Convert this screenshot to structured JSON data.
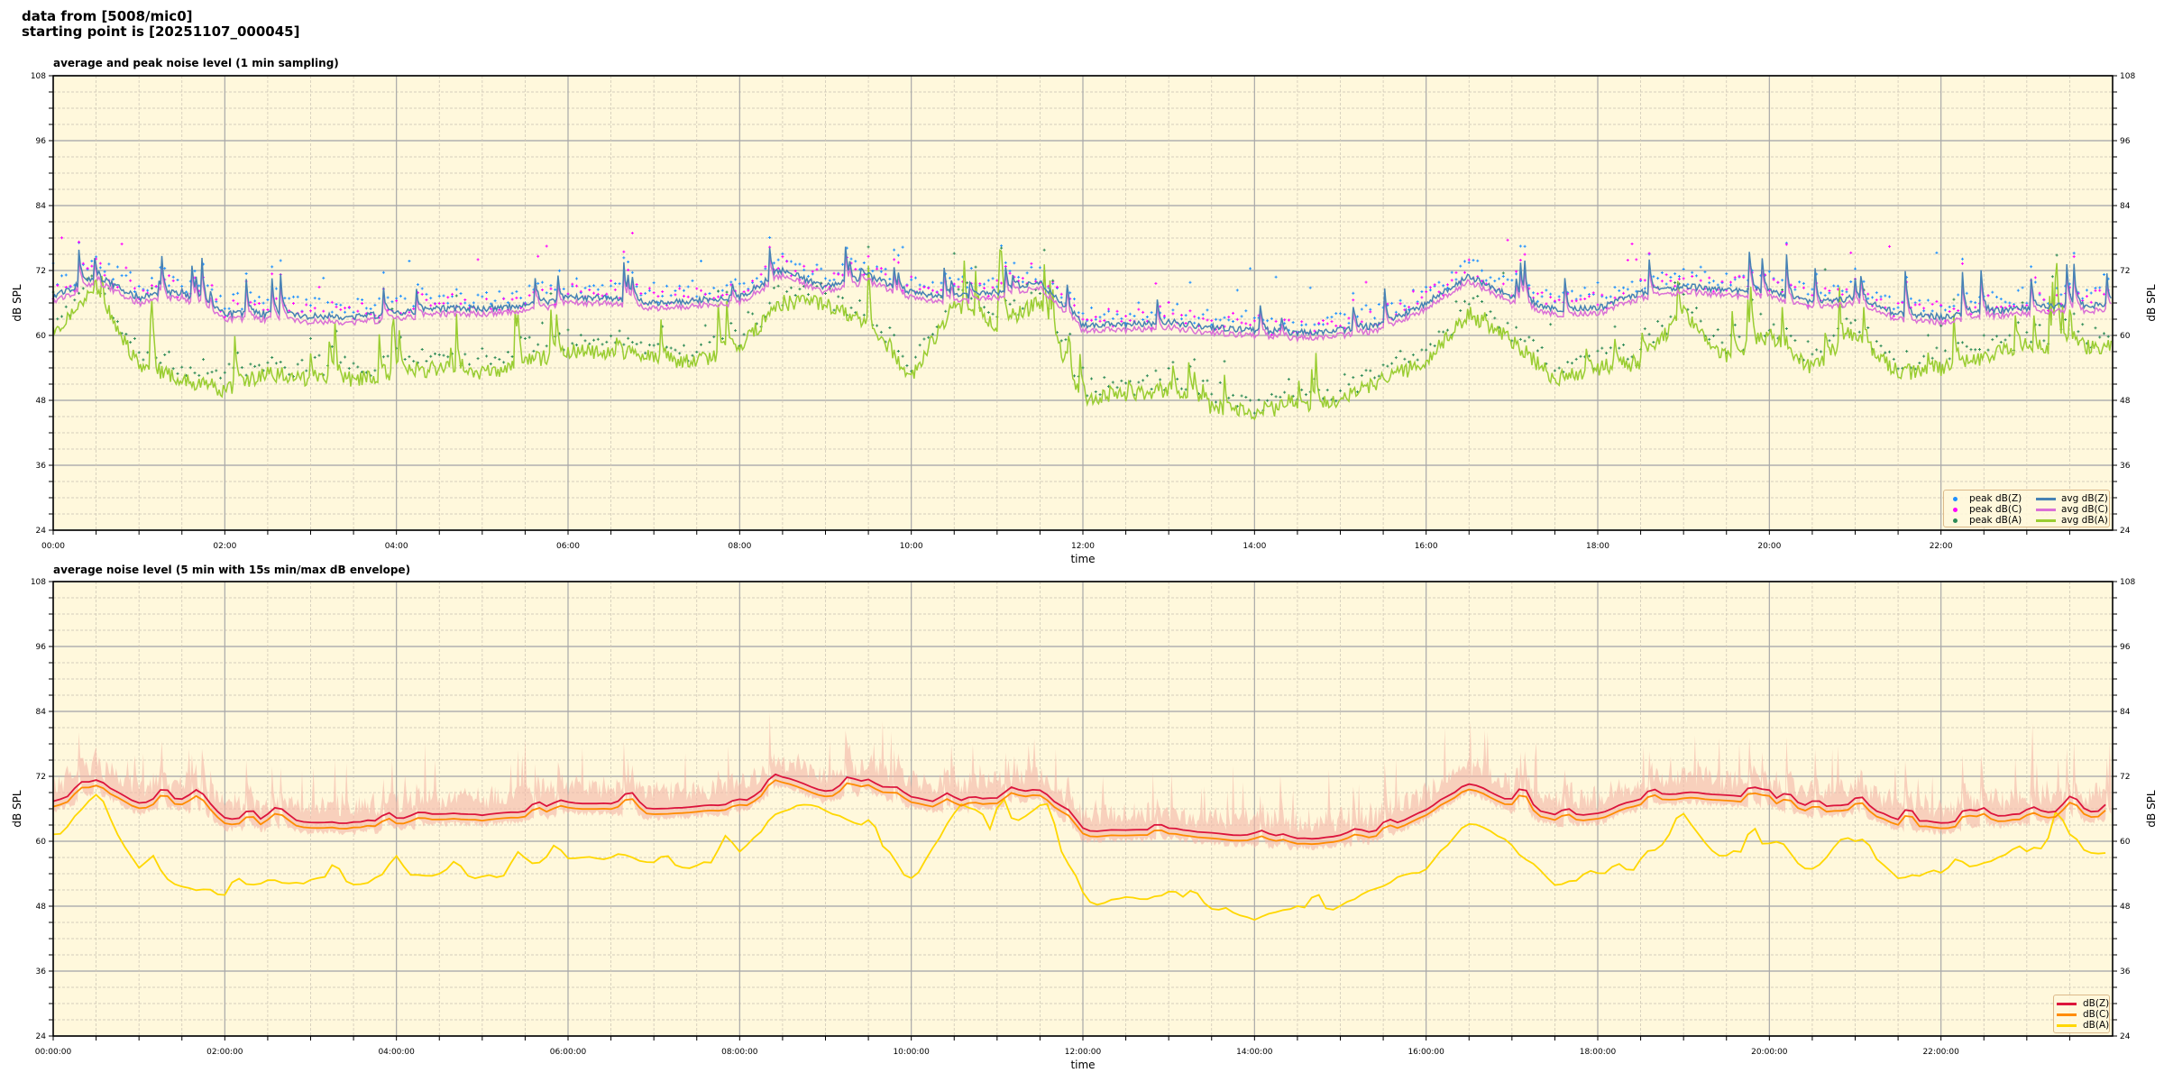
{
  "header": {
    "line1": "data from [5008/mic0]",
    "line2": "starting point is [20251107_000045]"
  },
  "colors": {
    "background": "#fff8dc",
    "envelope": "#f4b6a6"
  },
  "chart_data": [
    {
      "type": "line",
      "title": "average and peak noise level (1 min sampling)",
      "xlabel": "time",
      "ylabel": "dB SPL",
      "ylim": [
        24,
        108
      ],
      "xlim_hours": [
        0,
        24
      ],
      "yticks": [
        "24",
        "36",
        "48",
        "60",
        "72",
        "84",
        "96",
        "108"
      ],
      "xticks": [
        "00:00",
        "02:00",
        "04:00",
        "06:00",
        "08:00",
        "10:00",
        "12:00",
        "14:00",
        "16:00",
        "18:00",
        "20:00",
        "22:00"
      ],
      "grid": true,
      "legend_position": "lower-right",
      "sample_step_hours": 0.5,
      "series": [
        {
          "name": "peak dB(Z)",
          "kind": "scatter",
          "color": "#1e90ff",
          "values": [
            69,
            73,
            69,
            70,
            66,
            66,
            65.5,
            65.5,
            66,
            67,
            67,
            67.5,
            69,
            69,
            68,
            68.5,
            69,
            74,
            71,
            73,
            70,
            69,
            70,
            72,
            64,
            64,
            64.5,
            63.5,
            63,
            62.5,
            63,
            64,
            68,
            73,
            69,
            67,
            67,
            70,
            71,
            70.5,
            70,
            68,
            69,
            66,
            65.5,
            66.5,
            67,
            67.5
          ]
        },
        {
          "name": "peak dB(C)",
          "kind": "scatter",
          "color": "#ff00ff",
          "values": [
            68,
            72,
            68,
            69,
            65,
            65,
            64.5,
            64.5,
            65,
            66,
            66,
            66.5,
            68,
            68,
            67,
            67.5,
            68,
            73,
            70,
            72,
            69,
            68,
            69,
            71,
            63,
            63,
            63.5,
            62.5,
            62,
            61.5,
            62,
            63,
            67,
            72,
            68,
            66,
            66,
            69,
            70,
            69.5,
            69,
            67,
            68,
            65,
            64.5,
            65.5,
            66,
            66.5
          ]
        },
        {
          "name": "peak dB(A)",
          "kind": "scatter",
          "color": "#2e8b57",
          "values": [
            62,
            71,
            56,
            54,
            52,
            55,
            54,
            54,
            55,
            56,
            55,
            57,
            59,
            59,
            58,
            57,
            60,
            68,
            68,
            64,
            54,
            68,
            64,
            68,
            50,
            51,
            52,
            48.5,
            48,
            49,
            50,
            54,
            57,
            66,
            61,
            54,
            56,
            57,
            66,
            58,
            62,
            56,
            62,
            55,
            56,
            58,
            60,
            60
          ]
        },
        {
          "name": "avg dB(Z)",
          "kind": "line",
          "color": "#4682b4",
          "values": [
            67,
            71,
            67,
            68,
            64,
            64,
            63.5,
            63.5,
            64,
            65,
            65,
            65.5,
            67,
            67,
            66,
            66.5,
            67,
            72,
            69,
            71,
            68,
            67,
            68,
            70,
            62,
            62,
            62.5,
            61.5,
            61,
            60.5,
            61,
            62,
            66,
            71,
            67,
            65,
            65,
            68,
            69,
            68.5,
            68,
            66,
            67,
            64,
            63.5,
            64.5,
            65,
            65.5
          ]
        },
        {
          "name": "avg dB(C)",
          "kind": "line",
          "color": "#da70d6",
          "values": [
            66,
            70,
            66,
            67,
            63,
            63,
            62.5,
            62.5,
            63,
            64,
            64,
            64.5,
            66,
            66,
            65,
            65.5,
            66,
            71,
            68,
            70,
            67,
            66,
            67,
            69,
            61,
            61,
            61.5,
            60.5,
            60,
            59.5,
            60,
            61,
            65,
            70,
            66,
            64,
            64,
            67,
            68,
            67.5,
            67,
            65,
            66,
            63,
            62.5,
            63.5,
            64,
            64.5
          ]
        },
        {
          "name": "avg dB(A)",
          "kind": "line",
          "color": "#9acd32",
          "values": [
            60,
            69,
            54,
            52,
            50,
            53,
            52,
            52,
            53,
            54,
            53,
            55,
            57,
            57,
            56,
            55,
            58,
            66,
            66,
            62,
            52,
            66,
            62,
            66,
            48,
            49,
            50,
            46.5,
            46,
            47,
            48,
            52,
            55,
            64,
            59,
            52,
            54,
            55,
            64,
            56,
            60,
            54,
            60,
            53,
            54,
            56,
            58,
            58
          ]
        }
      ]
    },
    {
      "type": "line",
      "title": "average noise level (5 min with 15s min/max dB envelope)",
      "xlabel": "time",
      "ylabel": "dB SPL",
      "ylim": [
        24,
        108
      ],
      "xlim_hours": [
        0,
        24
      ],
      "yticks": [
        "24",
        "36",
        "48",
        "60",
        "72",
        "84",
        "96",
        "108"
      ],
      "xticks": [
        "00:00:00",
        "02:00:00",
        "04:00:00",
        "06:00:00",
        "08:00:00",
        "10:00:00",
        "12:00:00",
        "14:00:00",
        "16:00:00",
        "18:00:00",
        "20:00:00",
        "22:00:00"
      ],
      "grid": true,
      "legend_position": "lower-right",
      "sample_step_hours": 0.5,
      "series": [
        {
          "name": "dB(Z)",
          "kind": "line",
          "color": "#dc143c",
          "values": [
            67,
            71,
            67,
            68,
            64,
            64,
            63.5,
            63.5,
            64,
            65,
            65,
            65.5,
            67,
            67,
            66,
            66.5,
            67,
            72,
            69,
            71,
            68,
            67,
            68,
            70,
            62,
            62,
            62.5,
            61.5,
            61,
            60.5,
            61,
            62,
            66,
            71,
            67,
            65,
            65,
            68,
            69,
            68.5,
            68,
            66,
            67,
            64,
            63.5,
            64.5,
            65,
            65.5
          ]
        },
        {
          "name": "dB(C)",
          "kind": "line",
          "color": "#ff8c00",
          "values": [
            66,
            70,
            66,
            67,
            63,
            63,
            62.5,
            62.5,
            63,
            64,
            64,
            64.5,
            66,
            66,
            65,
            65.5,
            66,
            71,
            68,
            70,
            67,
            66,
            67,
            69,
            61,
            61,
            61.5,
            60.5,
            60,
            59.5,
            60,
            61,
            65,
            70,
            66,
            64,
            64,
            67,
            68,
            67.5,
            67,
            65,
            66,
            63,
            62.5,
            63.5,
            64,
            64.5
          ]
        },
        {
          "name": "dB(A)",
          "kind": "line",
          "color": "#ffd700",
          "values": [
            60,
            69,
            54,
            52,
            50,
            53,
            52,
            52,
            53,
            54,
            53,
            55,
            57,
            57,
            56,
            55,
            58,
            66,
            66,
            62,
            52,
            66,
            62,
            66,
            48,
            49,
            50,
            46.5,
            46,
            47,
            48,
            52,
            55,
            64,
            59,
            52,
            54,
            55,
            64,
            56,
            60,
            54,
            60,
            53,
            54,
            56,
            58,
            58
          ]
        }
      ]
    }
  ]
}
